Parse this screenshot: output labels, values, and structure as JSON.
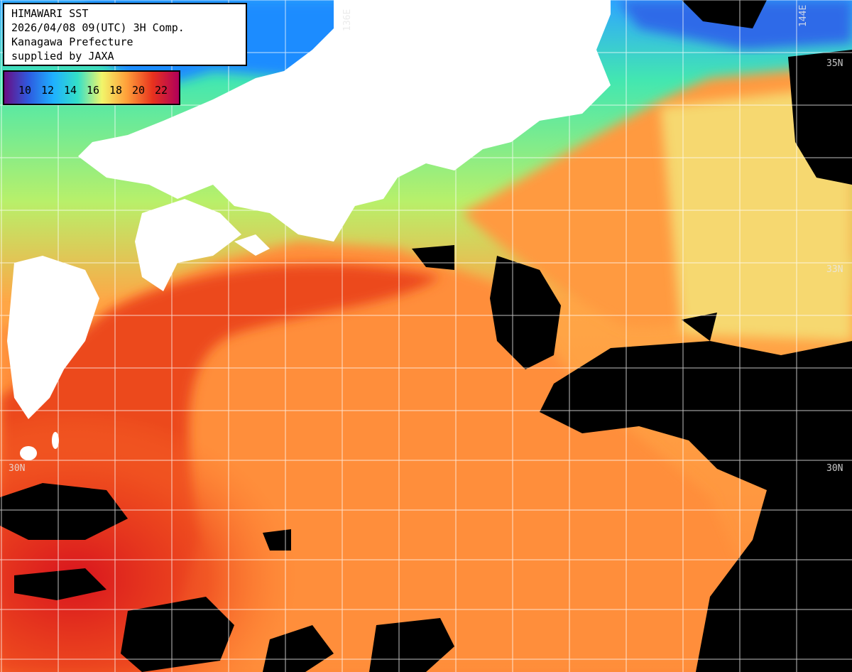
{
  "info": {
    "line1": "HIMAWARI SST",
    "line2": "2026/04/08 09(UTC) 3H Comp.",
    "line3": "Kanagawa Prefecture",
    "line4": "supplied by JAXA"
  },
  "legend": {
    "ticks": [
      "10",
      "12",
      "14",
      "16",
      "18",
      "20",
      "22"
    ],
    "colors": [
      "#6a0d83",
      "#2d5be0",
      "#1fa4ff",
      "#34e0c8",
      "#f2f56a",
      "#ffa03a",
      "#e8321e",
      "#b0005a"
    ]
  },
  "grid_labels": {
    "lon_136": "136E",
    "lon_144": "144E",
    "lat_30_left": "30N",
    "lat_30_right": "30N",
    "lat_33_right": "33N",
    "lat_35_right": "35N"
  },
  "colors": {
    "land": "#ffffff",
    "cloud": "#000000",
    "grid": "#ffffff",
    "sea_cold": "#33d6c8",
    "sea_mid": "#f5e470",
    "sea_warm": "#ffa040",
    "sea_hot": "#e8361c"
  }
}
